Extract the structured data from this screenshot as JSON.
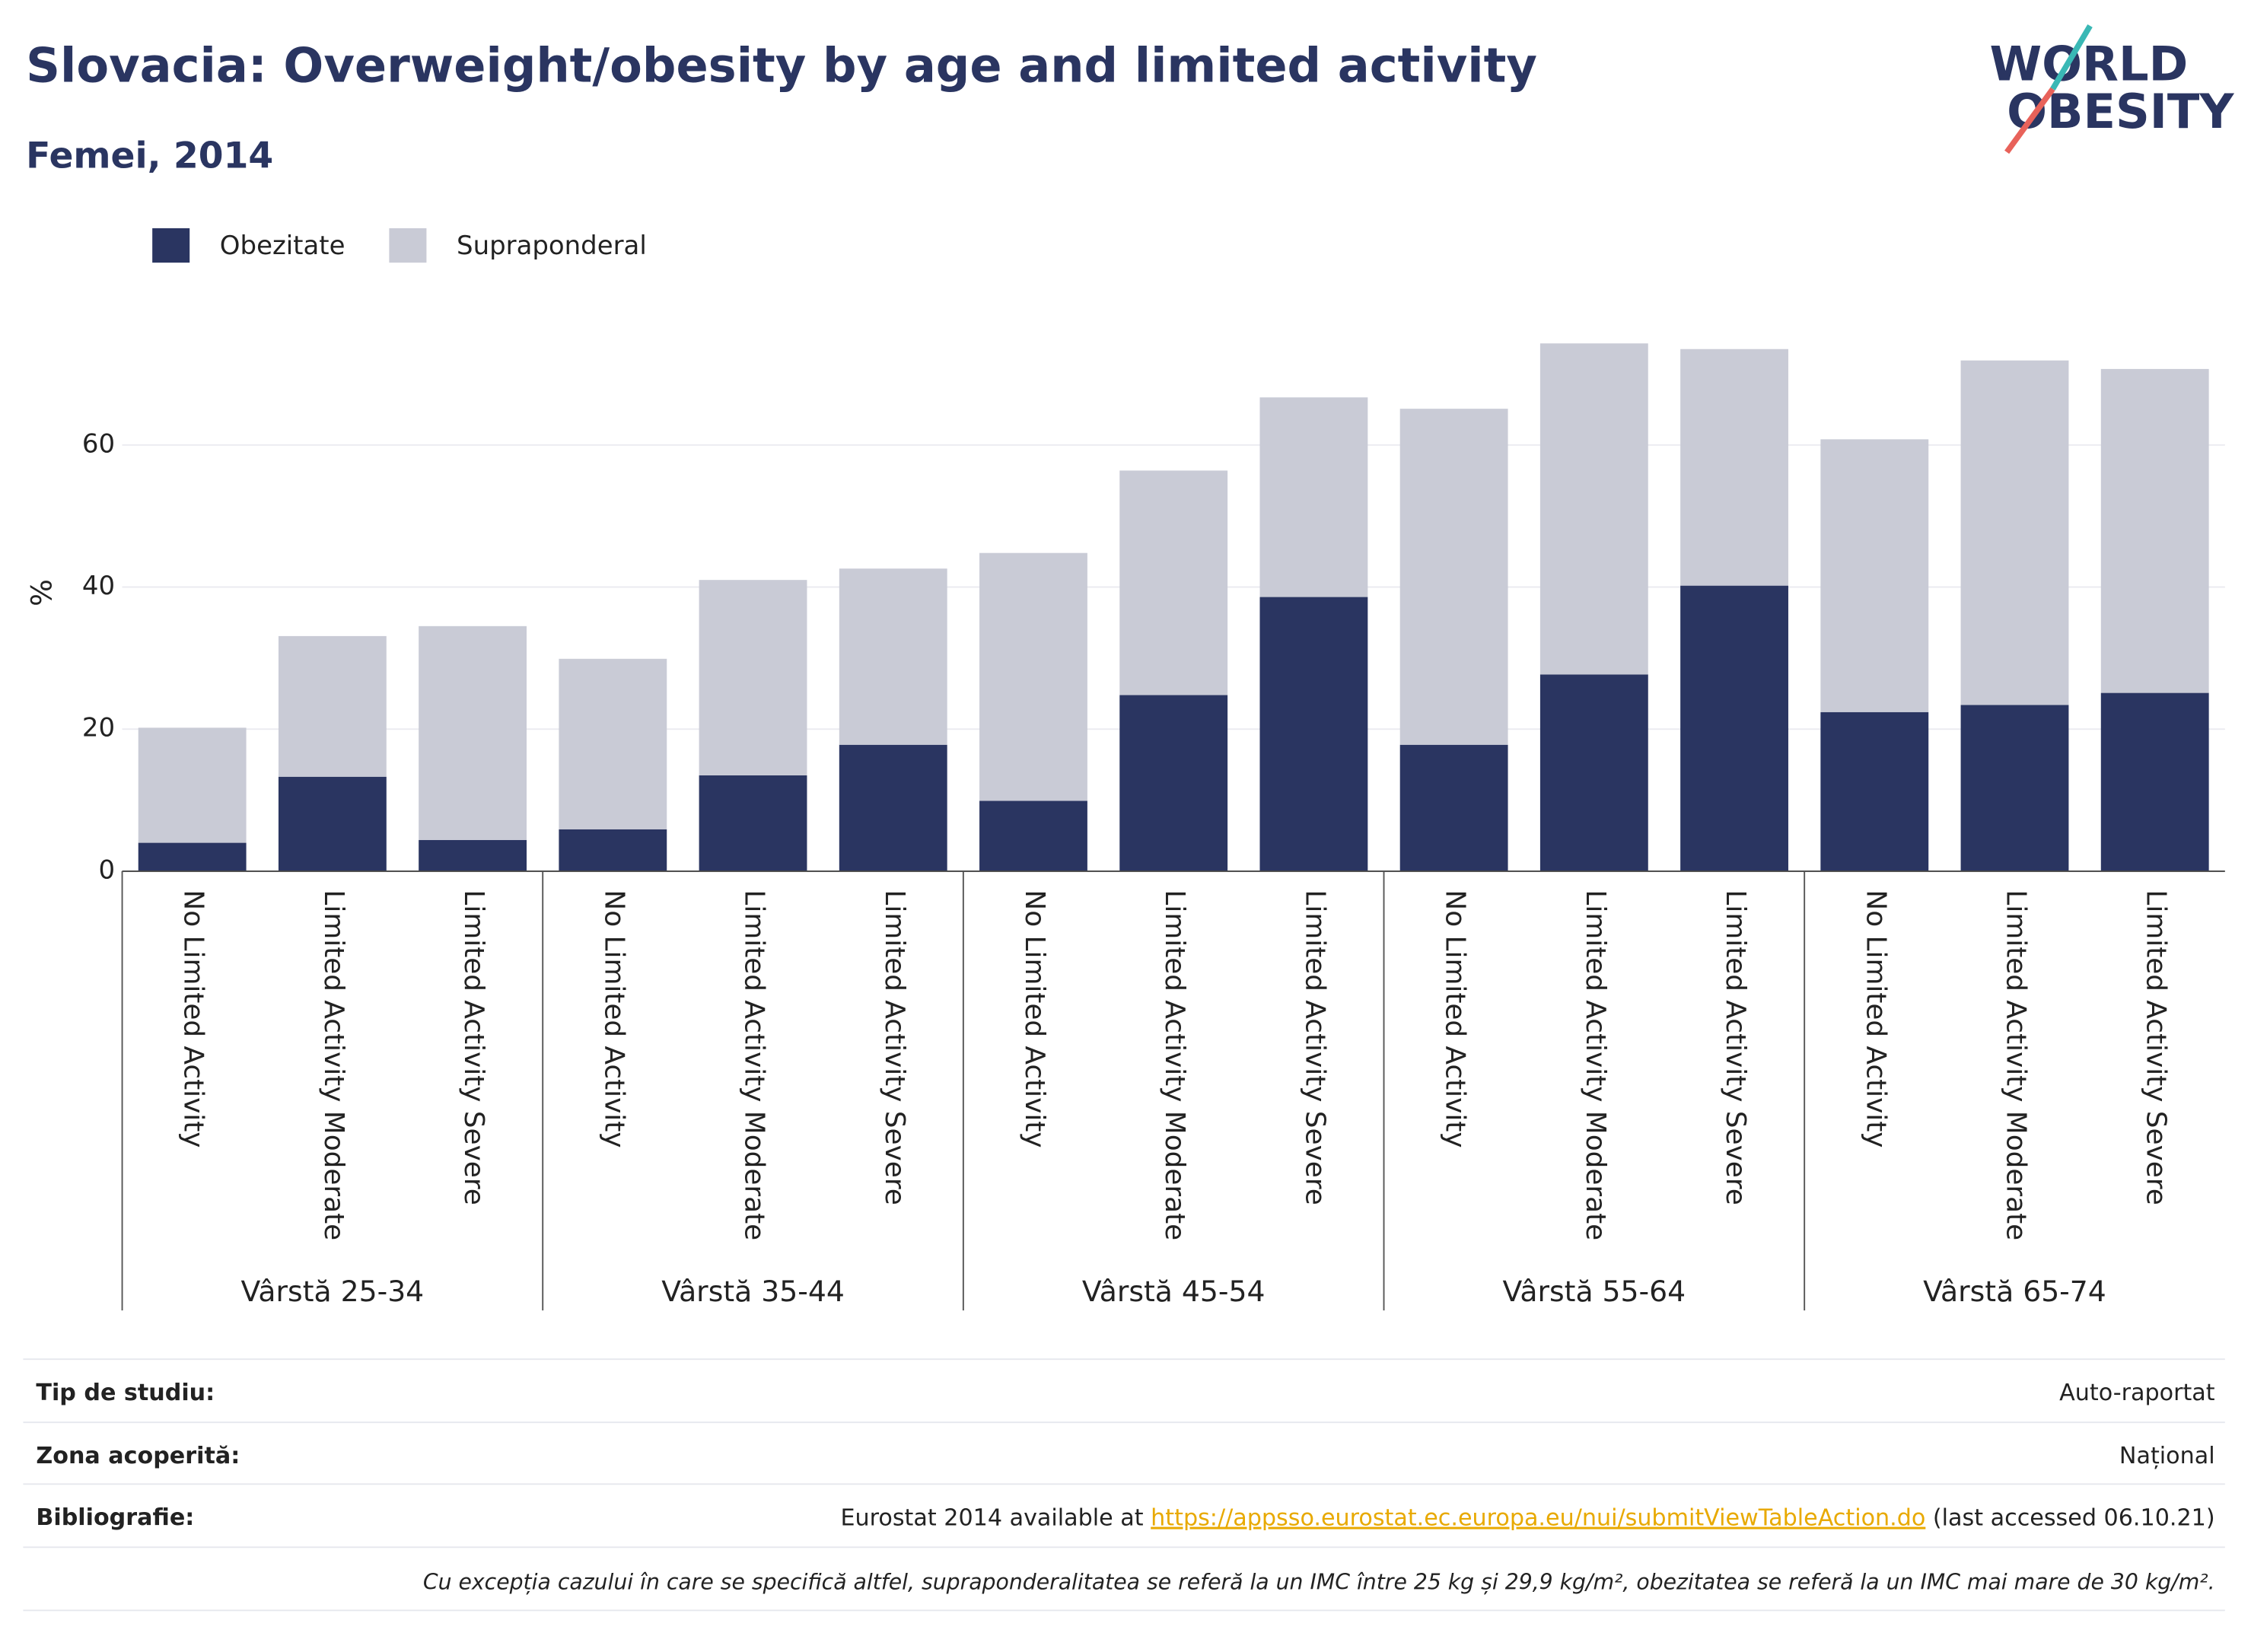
{
  "chart_data": {
    "type": "stacked_bar",
    "title": "Slovacia: Overweight/obesity by age and limited activity",
    "subtitle": "Femei, 2014",
    "y_label": "%",
    "logo": [
      "WORLD",
      "OBESITY"
    ],
    "categories": [
      "No Limited Activity",
      "Limited Activity Moderate",
      "Limited Activity Severe",
      "No Limited Activity",
      "Limited Activity Moderate",
      "Limited Activity Severe",
      "No Limited Activity",
      "Limited Activity Moderate",
      "Limited Activity Severe",
      "No Limited Activity",
      "Limited Activity Moderate",
      "Limited Activity Severe",
      "No Limited Activity",
      "Limited Activity Moderate",
      "Limited Activity Severe"
    ],
    "groups": [
      "Vârstă 25-34",
      "Vârstă 35-44",
      "Vârstă 45-54",
      "Vârstă 55-64",
      "Vârstă 65-74"
    ],
    "series": [
      {
        "name": "Obezitate",
        "color": "#2a3561",
        "values": [
          4.0,
          13.3,
          4.4,
          5.9,
          13.5,
          17.8,
          9.9,
          24.8,
          38.6,
          17.8,
          27.7,
          40.2,
          22.4,
          23.4,
          25.1
        ]
      },
      {
        "name": "Supraponderal",
        "color": "#c9cbd6",
        "values": [
          16.2,
          19.8,
          30.1,
          24.0,
          27.5,
          24.8,
          34.9,
          31.6,
          28.1,
          47.3,
          46.6,
          33.3,
          38.4,
          48.5,
          45.6
        ]
      }
    ],
    "ylim": [
      0,
      79
    ],
    "yticks": [
      0,
      20,
      40,
      60
    ],
    "grid": true,
    "legend": "top-left"
  },
  "footer": {
    "rows": [
      {
        "label": "Tip de studiu:",
        "value": "Auto-raportat"
      },
      {
        "label": "Zona acoperită:",
        "value": "Național"
      },
      {
        "label": "Bibliografie:",
        "value": "Eurostat 2014 available at ",
        "link": "https://appsso.eurostat.ec.europa.eu/nui/submitViewTableAction.do",
        "after": " (last accessed 06.10.21)"
      }
    ],
    "note": "Cu excepția cazului în care se specifică altfel, supraponderalitatea se referă la un IMC între 25 kg și 29,9 kg/m², obezitatea se referă la un IMC mai mare de 30 kg/m²."
  }
}
